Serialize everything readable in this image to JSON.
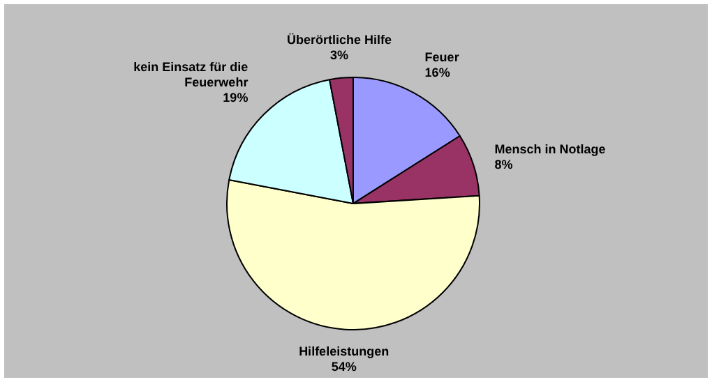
{
  "chart_data": {
    "type": "pie",
    "categories": [
      "Feuer",
      "Mensch in Notlage",
      "Hilfeleistungen",
      "kein Einsatz für die Feuerwehr",
      "Überörtliche Hilfe"
    ],
    "values": [
      16,
      8,
      54,
      19,
      3
    ],
    "colors": [
      "#9999ff",
      "#993366",
      "#ffffcc",
      "#ccffff",
      "#993366"
    ],
    "value_labels": [
      "16%",
      "8%",
      "54%",
      "19%",
      "3%"
    ],
    "legend": false
  }
}
